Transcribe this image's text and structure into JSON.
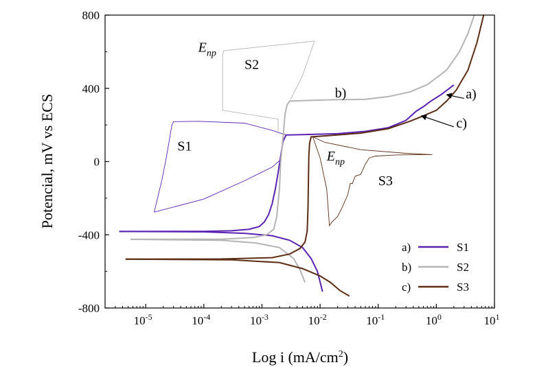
{
  "chart_data": {
    "type": "line",
    "title": "",
    "xlabel": "Log i (mA/cm",
    "xlabel_sup": "2",
    "xlabel_end": ")",
    "ylabel": "Potencial, mV vs ECS",
    "xscale": "log",
    "xlim": [
      2e-06,
      10
    ],
    "ylim": [
      -800,
      800
    ],
    "x_ticks": [
      {
        "value": 1e-05,
        "base": "10",
        "exp": "-5"
      },
      {
        "value": 0.0001,
        "base": "10",
        "exp": "-4"
      },
      {
        "value": 0.001,
        "base": "10",
        "exp": "-3"
      },
      {
        "value": 0.01,
        "base": "10",
        "exp": "-2"
      },
      {
        "value": 0.1,
        "base": "10",
        "exp": "-1"
      },
      {
        "value": 1,
        "base": "10",
        "exp": "0"
      },
      {
        "value": 10,
        "base": "10",
        "exp": "1"
      }
    ],
    "y_ticks": [
      {
        "value": -800,
        "label": "-800"
      },
      {
        "value": -400,
        "label": "-400"
      },
      {
        "value": 0,
        "label": "0"
      },
      {
        "value": 400,
        "label": "400"
      },
      {
        "value": 800,
        "label": "800"
      }
    ],
    "legend_position": "bottom-right",
    "series": [
      {
        "name": "S1",
        "key": "a)",
        "color": "#5a22b4",
        "width": 2,
        "forward": [
          [
            3.5e-06,
            -382
          ],
          [
            0.0001,
            -381
          ],
          [
            0.0003,
            -378
          ],
          [
            0.0006,
            -370
          ],
          [
            0.0009,
            -355
          ],
          [
            0.0011,
            -330
          ],
          [
            0.0013,
            -290
          ],
          [
            0.0015,
            -230
          ],
          [
            0.0017,
            -150
          ],
          [
            0.0019,
            -60
          ],
          [
            0.0021,
            30
          ],
          [
            0.0023,
            110
          ],
          [
            0.0026,
            145
          ],
          [
            0.005,
            147
          ],
          [
            0.02,
            152
          ],
          [
            0.06,
            165
          ],
          [
            0.15,
            185
          ],
          [
            0.3,
            225
          ],
          [
            0.45,
            275
          ],
          [
            0.6,
            300
          ],
          [
            0.8,
            330
          ],
          [
            1.2,
            365
          ],
          [
            2,
            418
          ]
        ],
        "cathodic": [
          [
            3.5e-06,
            -382
          ],
          [
            0.0001,
            -384
          ],
          [
            0.0005,
            -392
          ],
          [
            0.0015,
            -405
          ],
          [
            0.003,
            -430
          ],
          [
            0.005,
            -470
          ],
          [
            0.007,
            -530
          ],
          [
            0.009,
            -600
          ],
          [
            0.011,
            -710
          ]
        ],
        "reverse": [
          [
            0.0026,
            145
          ],
          [
            0.0015,
            170
          ],
          [
            0.0005,
            210
          ],
          [
            8e-05,
            220
          ],
          [
            3e-05,
            218
          ],
          [
            2.8e-05,
            195
          ],
          [
            2.5e-05,
            100
          ],
          [
            2.2e-05,
            0
          ],
          [
            1.9e-05,
            -100
          ],
          [
            1.6e-05,
            -200
          ],
          [
            1.4e-05,
            -275
          ],
          [
            1.45e-05,
            -275
          ],
          [
            0.0001,
            -205
          ],
          [
            0.0005,
            -105
          ],
          [
            0.0015,
            -30
          ],
          [
            0.0021,
            10
          ]
        ]
      },
      {
        "name": "S2",
        "key": "b)",
        "color": "#b4b4b4",
        "width": 2,
        "forward": [
          [
            5.5e-06,
            -425
          ],
          [
            0.0002,
            -424
          ],
          [
            0.0007,
            -415
          ],
          [
            0.0012,
            -400
          ],
          [
            0.0016,
            -370
          ],
          [
            0.0018,
            -300
          ],
          [
            0.002,
            -150
          ],
          [
            0.0021,
            0
          ],
          [
            0.0023,
            130
          ],
          [
            0.0025,
            260
          ],
          [
            0.0027,
            310
          ],
          [
            0.003,
            330
          ],
          [
            0.008,
            335
          ],
          [
            0.02,
            338
          ],
          [
            0.06,
            340
          ],
          [
            0.15,
            355
          ],
          [
            0.35,
            380
          ],
          [
            0.7,
            420
          ],
          [
            1.5,
            500
          ],
          [
            2.5,
            600
          ],
          [
            3.5,
            700
          ],
          [
            4.5,
            800
          ]
        ],
        "cathodic": [
          [
            5.5e-06,
            -425
          ],
          [
            0.0002,
            -430
          ],
          [
            0.0008,
            -445
          ],
          [
            0.002,
            -470
          ],
          [
            0.0035,
            -530
          ],
          [
            0.0045,
            -590
          ],
          [
            0.0055,
            -660
          ]
        ],
        "reverse": [
          [
            0.003,
            330
          ],
          [
            0.005,
            470
          ],
          [
            0.008,
            658
          ],
          [
            0.0003,
            610
          ],
          [
            0.00022,
            605
          ],
          [
            0.00021,
            580
          ],
          [
            0.00021,
            280
          ],
          [
            0.0019,
            232
          ],
          [
            0.0019,
            150
          ]
        ]
      },
      {
        "name": "S3",
        "key": "c)",
        "color": "#5c2c12",
        "width": 2,
        "forward": [
          [
            4.5e-06,
            -533
          ],
          [
            0.0002,
            -532
          ],
          [
            0.0015,
            -525
          ],
          [
            0.003,
            -505
          ],
          [
            0.0045,
            -475
          ],
          [
            0.0055,
            -440
          ],
          [
            0.006,
            -380
          ],
          [
            0.0062,
            -250
          ],
          [
            0.0063,
            -100
          ],
          [
            0.0064,
            30
          ],
          [
            0.0066,
            100
          ],
          [
            0.007,
            135
          ],
          [
            0.012,
            140
          ],
          [
            0.05,
            155
          ],
          [
            0.15,
            180
          ],
          [
            0.35,
            220
          ],
          [
            0.6,
            250
          ],
          [
            1,
            280
          ],
          [
            1.5,
            330
          ],
          [
            2.2,
            390
          ],
          [
            3.5,
            500
          ],
          [
            5,
            650
          ],
          [
            6.5,
            800
          ]
        ],
        "cathodic": [
          [
            4.5e-06,
            -533
          ],
          [
            0.0003,
            -537
          ],
          [
            0.002,
            -552
          ],
          [
            0.005,
            -585
          ],
          [
            0.01,
            -625
          ],
          [
            0.015,
            -660
          ],
          [
            0.022,
            -705
          ],
          [
            0.032,
            -735
          ]
        ],
        "reverse": [
          [
            0.0075,
            135
          ],
          [
            0.01,
            20
          ],
          [
            0.013,
            -150
          ],
          [
            0.0145,
            -350
          ],
          [
            0.016,
            -330
          ],
          [
            0.02,
            -300
          ],
          [
            0.024,
            -250
          ],
          [
            0.03,
            -180
          ],
          [
            0.033,
            -120
          ],
          [
            0.036,
            -120
          ],
          [
            0.04,
            -80
          ],
          [
            0.05,
            -70
          ],
          [
            0.06,
            -15
          ],
          [
            0.07,
            20
          ],
          [
            0.09,
            30
          ],
          [
            0.2,
            36
          ],
          [
            0.5,
            38
          ],
          [
            0.85,
            38
          ],
          [
            0.3,
            45
          ],
          [
            0.05,
            65
          ],
          [
            0.012,
            105
          ],
          [
            0.0075,
            135
          ]
        ]
      }
    ],
    "annotations": [
      {
        "text": "S1",
        "x": 3.5e-05,
        "y": 60
      },
      {
        "text": "S2",
        "x": 0.0005,
        "y": 505
      },
      {
        "text": "S3",
        "x": 0.1,
        "y": -130
      },
      {
        "text": "a)",
        "x": 3.2,
        "y": 345
      },
      {
        "text": "b)",
        "x": 0.018,
        "y": 350
      },
      {
        "text": "c)",
        "x": 2.2,
        "y": 185
      }
    ],
    "enp_labels": [
      {
        "base": "E",
        "sub": "np",
        "x": 8e-05,
        "y": 600
      },
      {
        "base": "E",
        "sub": "np",
        "x": 0.013,
        "y": 5
      }
    ],
    "arrows": [
      {
        "from": [
          3.0,
          345
        ],
        "to": [
          1.5,
          365
        ]
      },
      {
        "from": [
          2.0,
          190
        ],
        "to": [
          0.55,
          250
        ]
      }
    ]
  }
}
